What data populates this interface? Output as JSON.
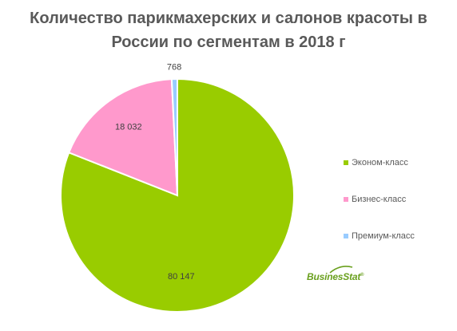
{
  "title": {
    "line1": "Количество парикмахерских и салонов красоты в",
    "line2": "России по сегментам в 2018 г"
  },
  "chart_data": {
    "type": "pie",
    "title": "Количество парикмахерских и салонов красоты в России по сегментам в 2018 г",
    "slices": [
      {
        "name": "Эконом-класс",
        "value": 80147,
        "label": "80 147",
        "color": "#99cc00"
      },
      {
        "name": "Бизнес-класс",
        "value": 18032,
        "label": "18 032",
        "color": "#ff99cc"
      },
      {
        "name": "Премиум-класс",
        "value": 768,
        "label": "768",
        "color": "#99ccff"
      }
    ],
    "legend_position": "right"
  },
  "watermark": {
    "text": "BusinesStat",
    "mark": "®"
  }
}
